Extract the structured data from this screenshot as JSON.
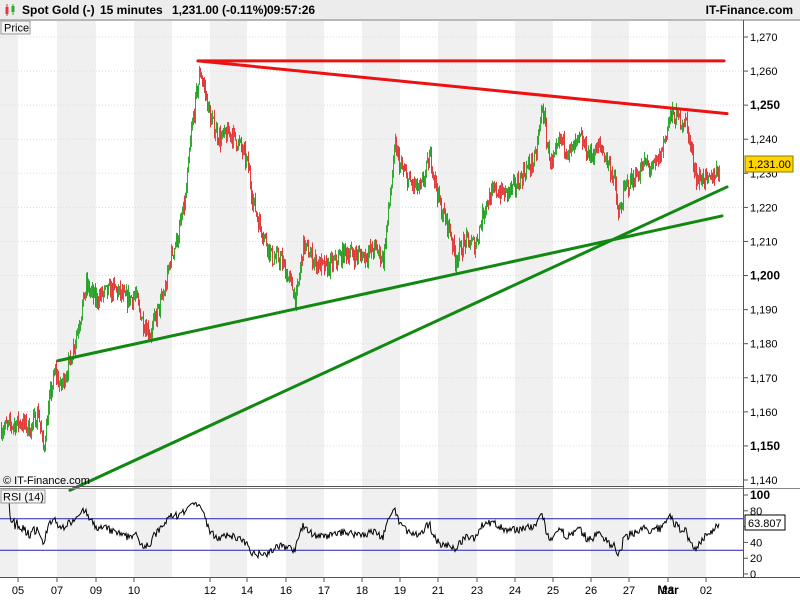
{
  "header": {
    "instrument": "Spot Gold (-)",
    "timeframe": "15 minutes",
    "last_change": "1,231.00 (-0.11%)",
    "time": "09:57:26",
    "brand": "IT-Finance.com"
  },
  "price_panel": {
    "label": "Price",
    "watermark": "© IT-Finance.com",
    "last_price_label": "1,231.00"
  },
  "rsi_panel": {
    "label": "RSI (14)",
    "last_value_label": "63.807"
  },
  "colors": {
    "up_candle": "#33a833",
    "down_candle": "#e03c3c",
    "resistance": "#ee1111",
    "support": "#118811",
    "band": "#f0f0f0",
    "rsi_bounds": "#2222aa"
  },
  "chart_data": [
    {
      "type": "candlestick",
      "interval": "15 minutes",
      "ylim": [
        1137,
        1276
      ],
      "y_ticks": [
        {
          "value": 1140,
          "label": "1,140",
          "bold": false
        },
        {
          "value": 1150,
          "label": "1,150",
          "bold": true
        },
        {
          "value": 1160,
          "label": "1,160",
          "bold": false
        },
        {
          "value": 1170,
          "label": "1,170",
          "bold": false
        },
        {
          "value": 1180,
          "label": "1,180",
          "bold": false
        },
        {
          "value": 1190,
          "label": "1,190",
          "bold": false
        },
        {
          "value": 1200,
          "label": "1,200",
          "bold": true
        },
        {
          "value": 1210,
          "label": "1,210",
          "bold": false
        },
        {
          "value": 1220,
          "label": "1,220",
          "bold": false
        },
        {
          "value": 1230,
          "label": "1,230",
          "bold": false
        },
        {
          "value": 1240,
          "label": "1,240",
          "bold": false
        },
        {
          "value": 1250,
          "label": "1,250",
          "bold": true
        },
        {
          "value": 1260,
          "label": "1,260",
          "bold": false
        },
        {
          "value": 1270,
          "label": "1,270",
          "bold": false
        }
      ],
      "x_ticks": [
        "05",
        "07",
        "09",
        "10",
        "12",
        "14",
        "16",
        "17",
        "18",
        "19",
        "21",
        "23",
        "24",
        "25",
        "26",
        "27",
        "28",
        "Mar",
        "02"
      ],
      "price_path": [
        [
          0,
          1155
        ],
        [
          10,
          1156
        ],
        [
          20,
          1157
        ],
        [
          30,
          1155
        ],
        [
          38,
          1160
        ],
        [
          43,
          1149
        ],
        [
          50,
          1165
        ],
        [
          55,
          1172
        ],
        [
          60,
          1167
        ],
        [
          70,
          1175
        ],
        [
          80,
          1188
        ],
        [
          86,
          1197
        ],
        [
          95,
          1193
        ],
        [
          105,
          1195
        ],
        [
          115,
          1196
        ],
        [
          125,
          1193
        ],
        [
          135,
          1194
        ],
        [
          142,
          1187
        ],
        [
          150,
          1183
        ],
        [
          158,
          1190
        ],
        [
          165,
          1196
        ],
        [
          170,
          1205
        ],
        [
          178,
          1212
        ],
        [
          185,
          1222
        ],
        [
          191,
          1242
        ],
        [
          196,
          1253
        ],
        [
          200,
          1260
        ],
        [
          204,
          1255
        ],
        [
          210,
          1246
        ],
        [
          220,
          1240
        ],
        [
          230,
          1242
        ],
        [
          240,
          1238
        ],
        [
          248,
          1232
        ],
        [
          252,
          1223
        ],
        [
          258,
          1216
        ],
        [
          266,
          1210
        ],
        [
          272,
          1205
        ],
        [
          280,
          1205
        ],
        [
          290,
          1198
        ],
        [
          296,
          1193
        ],
        [
          303,
          1209
        ],
        [
          315,
          1204
        ],
        [
          325,
          1202
        ],
        [
          335,
          1204
        ],
        [
          345,
          1207
        ],
        [
          355,
          1206
        ],
        [
          365,
          1206
        ],
        [
          375,
          1208
        ],
        [
          383,
          1205
        ],
        [
          390,
          1224
        ],
        [
          395,
          1238
        ],
        [
          400,
          1232
        ],
        [
          410,
          1227
        ],
        [
          420,
          1225
        ],
        [
          430,
          1235
        ],
        [
          440,
          1220
        ],
        [
          450,
          1213
        ],
        [
          455,
          1205
        ],
        [
          465,
          1210
        ],
        [
          475,
          1209
        ],
        [
          485,
          1221
        ],
        [
          495,
          1225
        ],
        [
          505,
          1224
        ],
        [
          515,
          1226
        ],
        [
          525,
          1231
        ],
        [
          535,
          1234
        ],
        [
          542,
          1250
        ],
        [
          547,
          1238
        ],
        [
          552,
          1232
        ],
        [
          560,
          1240
        ],
        [
          570,
          1236
        ],
        [
          580,
          1240
        ],
        [
          590,
          1235
        ],
        [
          600,
          1238
        ],
        [
          608,
          1233
        ],
        [
          614,
          1228
        ],
        [
          618,
          1217
        ],
        [
          625,
          1226
        ],
        [
          635,
          1229
        ],
        [
          645,
          1233
        ],
        [
          652,
          1231
        ],
        [
          660,
          1235
        ],
        [
          670,
          1247
        ],
        [
          678,
          1246
        ],
        [
          686,
          1245
        ],
        [
          692,
          1235
        ],
        [
          697,
          1228
        ],
        [
          703,
          1229
        ],
        [
          708,
          1227
        ],
        [
          714,
          1230
        ],
        [
          719,
          1231
        ]
      ],
      "last_price": 1231.0,
      "trendlines": [
        {
          "role": "resistance",
          "color": "red",
          "from": [
            198,
            1263
          ],
          "to": [
            724,
            1263
          ]
        },
        {
          "role": "resistance",
          "color": "red",
          "from": [
            198,
            1263
          ],
          "to": [
            727,
            1247.5
          ]
        },
        {
          "role": "support",
          "color": "green",
          "from": [
            58,
            1175
          ],
          "to": [
            722,
            1217.5
          ]
        },
        {
          "role": "support",
          "color": "green",
          "from": [
            70,
            1137
          ],
          "to": [
            727,
            1226
          ]
        }
      ]
    },
    {
      "type": "line",
      "indicator": "RSI (14)",
      "ylim": [
        0,
        100
      ],
      "levels": [
        30,
        70
      ],
      "y_ticks": [
        {
          "value": 0,
          "label": "0",
          "bold": false
        },
        {
          "value": 20,
          "label": "20",
          "bold": false
        },
        {
          "value": 40,
          "label": "40",
          "bold": false
        },
        {
          "value": 60,
          "label": "60",
          "bold": false
        },
        {
          "value": 80,
          "label": "80",
          "bold": false
        },
        {
          "value": 100,
          "label": "100",
          "bold": true
        }
      ],
      "last_value": 63.807
    }
  ]
}
